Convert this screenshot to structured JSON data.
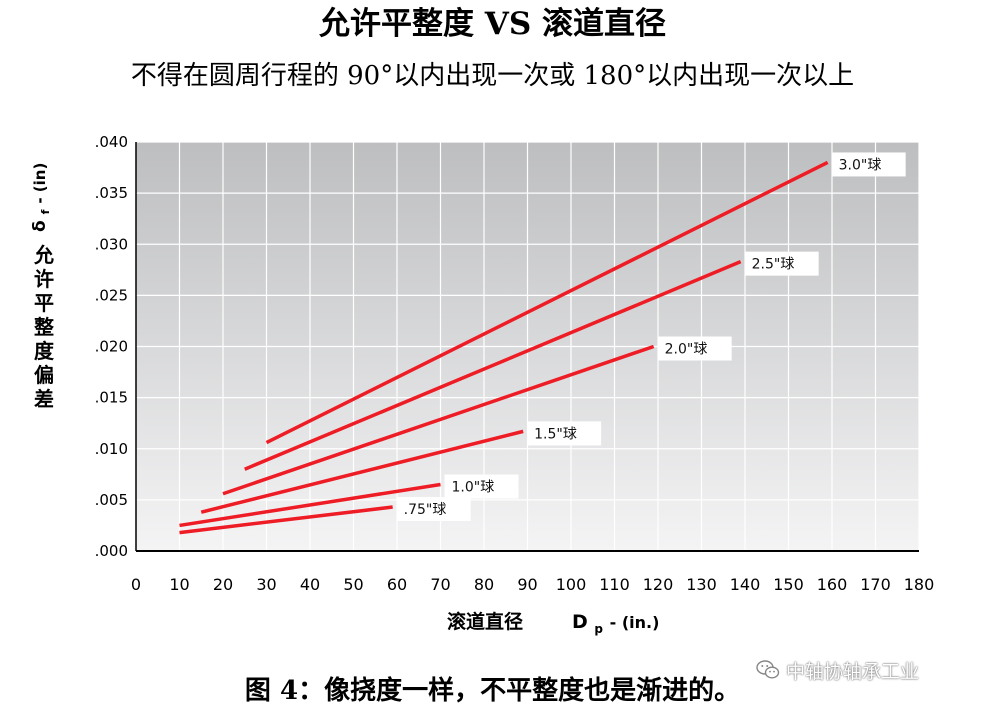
{
  "header": {
    "title": "允许平整度 VS 滚道直径",
    "subtitle": "不得在圆周行程的 90°以内出现一次或 180°以内出现一次以上"
  },
  "caption": "图 4：像挠度一样，不平整度也是渐进的。",
  "watermark": {
    "text": "中轴协轴承工业",
    "icon": "wechat-icon"
  },
  "chart_data": {
    "type": "line",
    "title": "允许平整度 VS 滚道直径",
    "subtitle": "不得在圆周行程的 90°以内出现一次或 180°以内出现一次以上",
    "xlabel": "滚道直径",
    "xlabel_symbol": "D",
    "xlabel_sub": "p",
    "xlabel_unit": "- (in.)",
    "ylabel": "允许平整度偏差",
    "ylabel_symbol": "δ",
    "ylabel_sub": "f",
    "ylabel_unit": "- (in)",
    "xlim": [
      0,
      180
    ],
    "ylim": [
      0,
      0.04
    ],
    "xticks": [
      "0",
      "10",
      "20",
      "30",
      "40",
      "50",
      "60",
      "70",
      "80",
      "90",
      "100",
      "110",
      "120",
      "130",
      "140",
      "150",
      "160",
      "170",
      "180"
    ],
    "yticks": [
      ".000",
      ".005",
      ".010",
      ".015",
      ".020",
      ".025",
      ".030",
      ".035",
      ".040"
    ],
    "grid": true,
    "line_color": "#ee1c25",
    "series": [
      {
        "name": ".75\"球",
        "x": [
          10,
          59
        ],
        "y": [
          0.0018,
          0.0043
        ]
      },
      {
        "name": "1.0\"球",
        "x": [
          10,
          70
        ],
        "y": [
          0.0025,
          0.0065
        ]
      },
      {
        "name": "1.5\"球",
        "x": [
          15,
          89
        ],
        "y": [
          0.0038,
          0.0117
        ]
      },
      {
        "name": "2.0\"球",
        "x": [
          20,
          119
        ],
        "y": [
          0.0056,
          0.02
        ]
      },
      {
        "name": "2.5\"球",
        "x": [
          25,
          139
        ],
        "y": [
          0.008,
          0.0283
        ]
      },
      {
        "name": "3.0\"球",
        "x": [
          30,
          159
        ],
        "y": [
          0.0106,
          0.038
        ]
      }
    ]
  }
}
